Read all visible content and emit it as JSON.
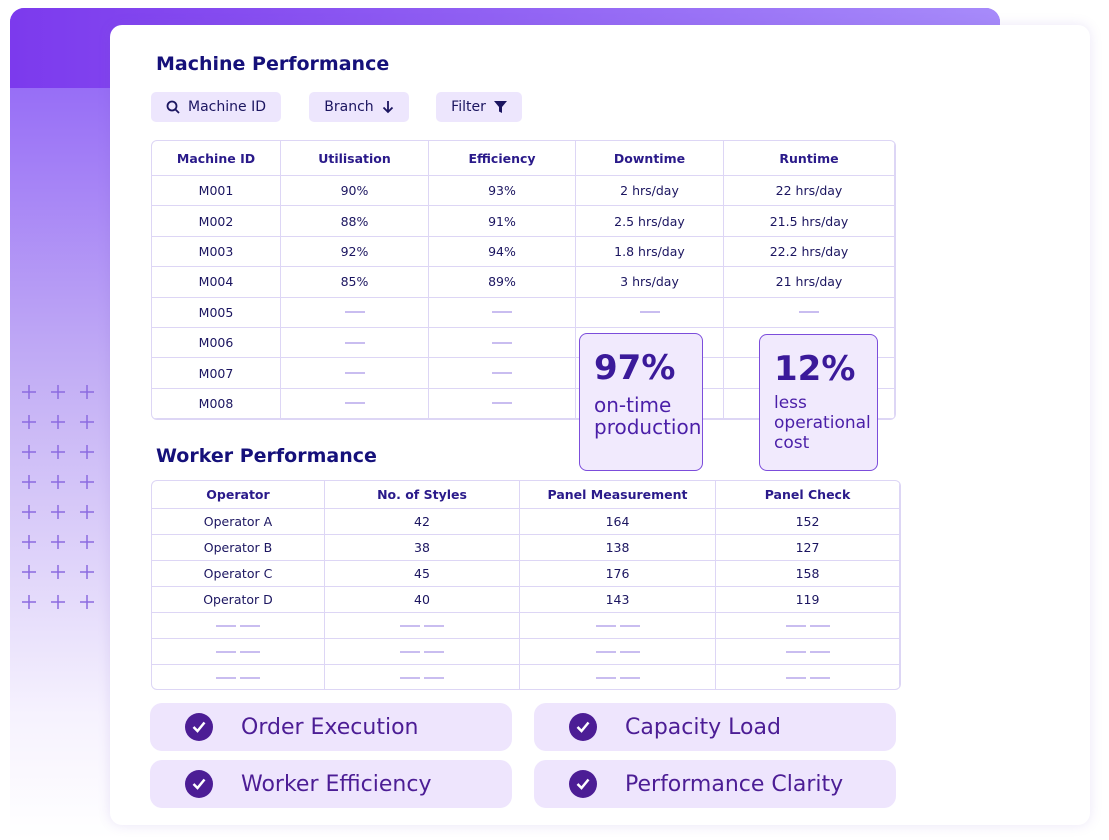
{
  "header": {
    "title": "Machine Performance"
  },
  "controls": [
    "Machine ID",
    "Branch",
    "Filter"
  ],
  "machine_table": {
    "columns": [
      "Machine ID",
      "Utilisation",
      "Efficiency",
      "Downtime",
      "Runtime"
    ],
    "rows": [
      [
        "M001",
        "90%",
        "93%",
        "2 hrs/day",
        "22 hrs/day"
      ],
      [
        "M002",
        "88%",
        "91%",
        "2.5 hrs/day",
        "21.5 hrs/day"
      ],
      [
        "M003",
        "92%",
        "94%",
        "1.8 hrs/day",
        "22.2 hrs/day"
      ],
      [
        "M004",
        "85%",
        "89%",
        "3 hrs/day",
        "21 hrs/day"
      ],
      [
        "M005"
      ],
      [
        "M006"
      ],
      [
        "M007"
      ],
      [
        "M008"
      ]
    ]
  },
  "stats": [
    {
      "value": "97%",
      "label": "on-time production"
    },
    {
      "value": "12%",
      "label": "less operational cost"
    }
  ],
  "worker_section": {
    "title": "Worker Performance"
  },
  "worker_table": {
    "columns": [
      "Operator",
      "No. of Styles",
      "Panel Measurement",
      "Panel Check"
    ],
    "rows": [
      [
        "Operator A",
        "42",
        "164",
        "152"
      ],
      [
        "Operator B",
        "38",
        "138",
        "127"
      ],
      [
        "Operator C",
        "45",
        "176",
        "158"
      ],
      [
        "Operator D",
        "40",
        "143",
        "119"
      ]
    ]
  },
  "features": [
    "Order Execution",
    "Capacity Load",
    "Worker Efficiency",
    "Performance Clarity"
  ]
}
